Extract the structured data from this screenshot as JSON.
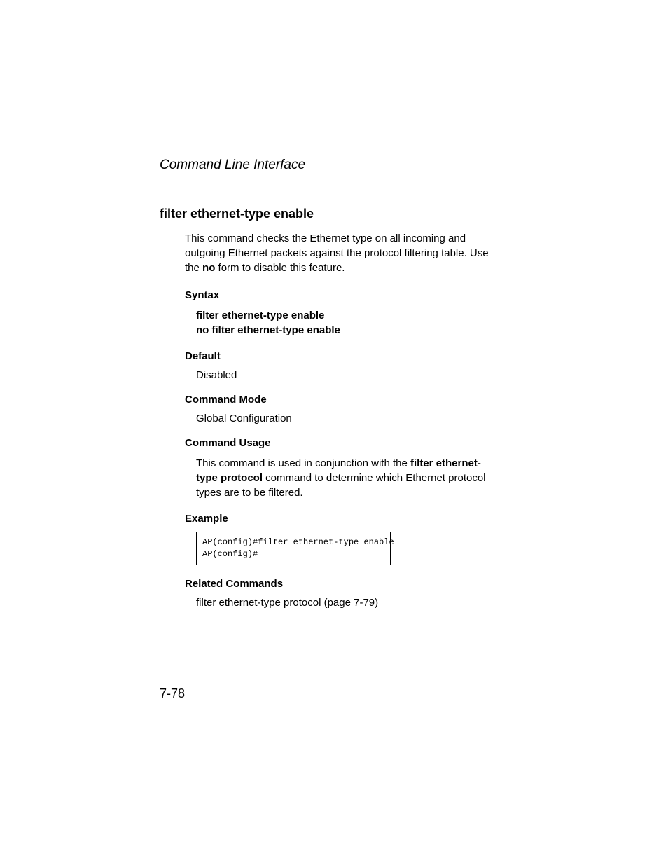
{
  "header": {
    "title": "Command Line Interface"
  },
  "section": {
    "heading": "filter ethernet-type enable",
    "description_part1": "This command checks the Ethernet type on all incoming and outgoing Ethernet packets against the protocol filtering table. Use the ",
    "description_bold": "no",
    "description_part2": " form to disable this feature."
  },
  "syntax": {
    "label": "Syntax",
    "line1": "filter ethernet-type enable",
    "line2": "no filter ethernet-type enable"
  },
  "default": {
    "label": "Default",
    "value": "Disabled"
  },
  "command_mode": {
    "label": "Command Mode",
    "value": "Global Configuration"
  },
  "command_usage": {
    "label": "Command Usage",
    "part1": "This command is used in conjunction with the ",
    "bold1": "filter ethernet-type protocol",
    "part2": " command to determine which Ethernet protocol types are to be filtered."
  },
  "example": {
    "label": "Example",
    "code": "AP(config)#filter ethernet-type enable\nAP(config)#"
  },
  "related": {
    "label": "Related Commands",
    "value": "filter ethernet-type protocol (page 7-79)"
  },
  "page_number": "7-78",
  "styling": {
    "background_color": "#ffffff",
    "text_color": "#000000",
    "font_family": "Arial, Helvetica, sans-serif",
    "mono_font_family": "Courier New, monospace",
    "header_fontsize": 19,
    "heading_fontsize": 18,
    "body_fontsize": 15,
    "code_fontsize": 12,
    "page_number_fontsize": 18
  }
}
